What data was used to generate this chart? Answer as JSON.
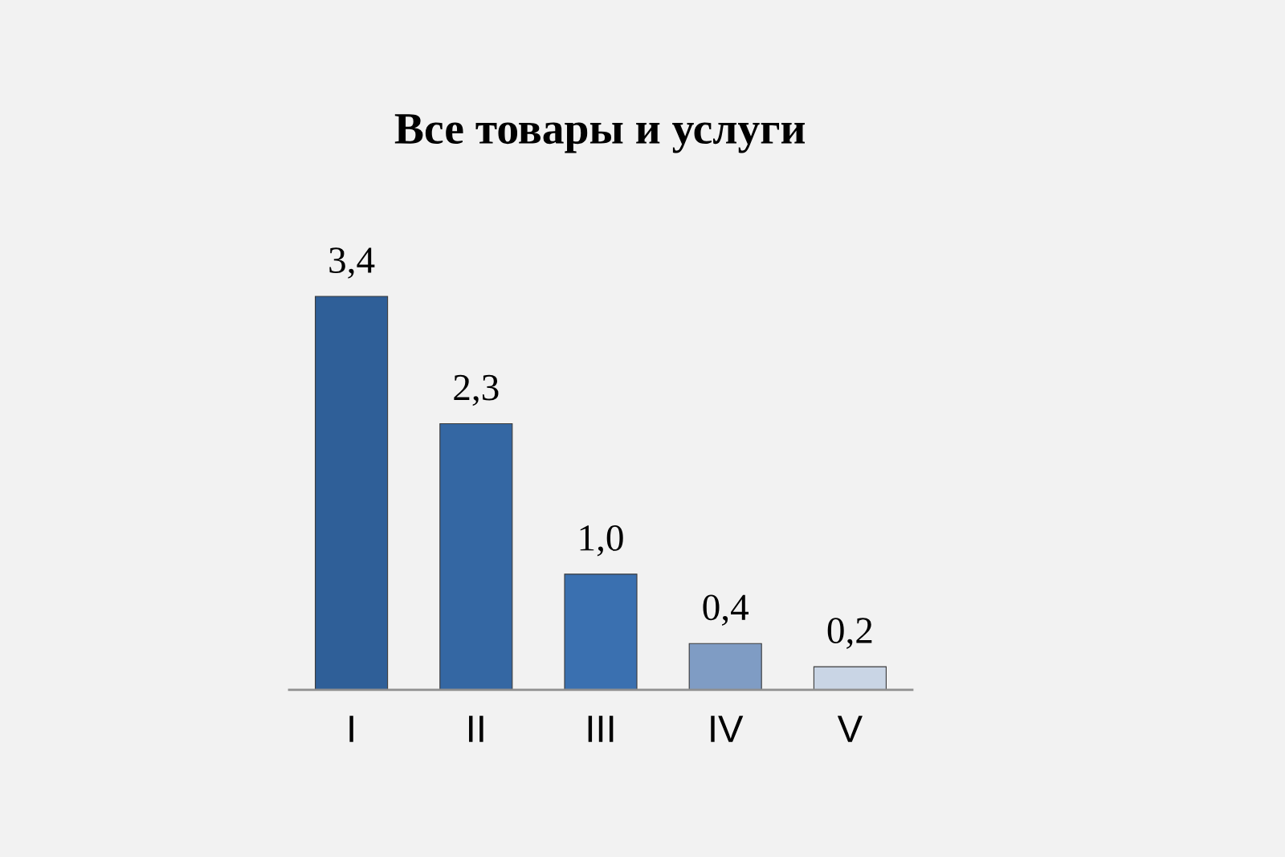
{
  "chart_data": {
    "type": "bar",
    "title": "Все товары и услуги",
    "categories": [
      "I",
      "II",
      "III",
      "IV",
      "V"
    ],
    "values": [
      3.4,
      2.3,
      1.0,
      0.4,
      0.2
    ],
    "colors": [
      "#2f5f98",
      "#3467a3",
      "#3a70b0",
      "#7f9cc4",
      "#c9d5e5"
    ],
    "value_labels": [
      "3,4",
      "2,3",
      "1,0",
      "0,4",
      "0,2"
    ],
    "grid": false,
    "legend": false
  }
}
